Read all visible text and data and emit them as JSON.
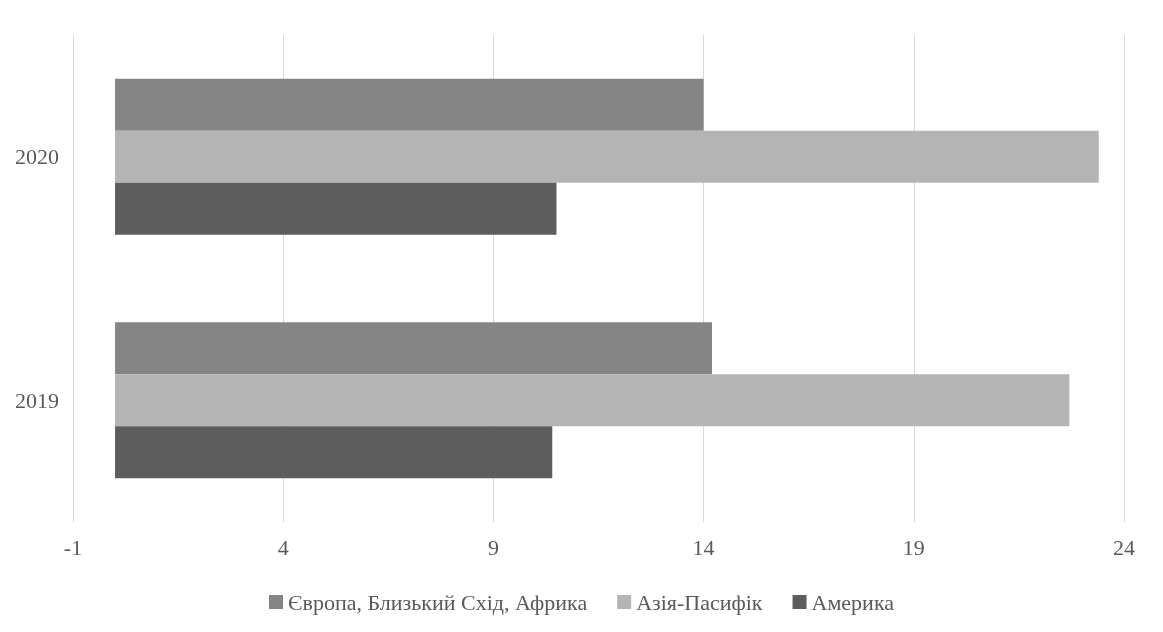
{
  "chart_data": {
    "type": "bar",
    "orientation": "horizontal",
    "categories": [
      "2020",
      "2019"
    ],
    "series": [
      {
        "name": "Європа, Близький Схід, Африка",
        "color": "#858585",
        "values": [
          14.0,
          14.2
        ]
      },
      {
        "name": "Азія-Пасифік",
        "color": "#b4b4b4",
        "values": [
          23.4,
          22.7
        ]
      },
      {
        "name": "Америка",
        "color": "#5d5d5d",
        "values": [
          10.5,
          10.4
        ]
      }
    ],
    "xlim": [
      -1,
      24
    ],
    "xticks": [
      -1,
      4,
      9,
      14,
      19,
      24
    ],
    "grid": "x",
    "legend": "bottom"
  }
}
